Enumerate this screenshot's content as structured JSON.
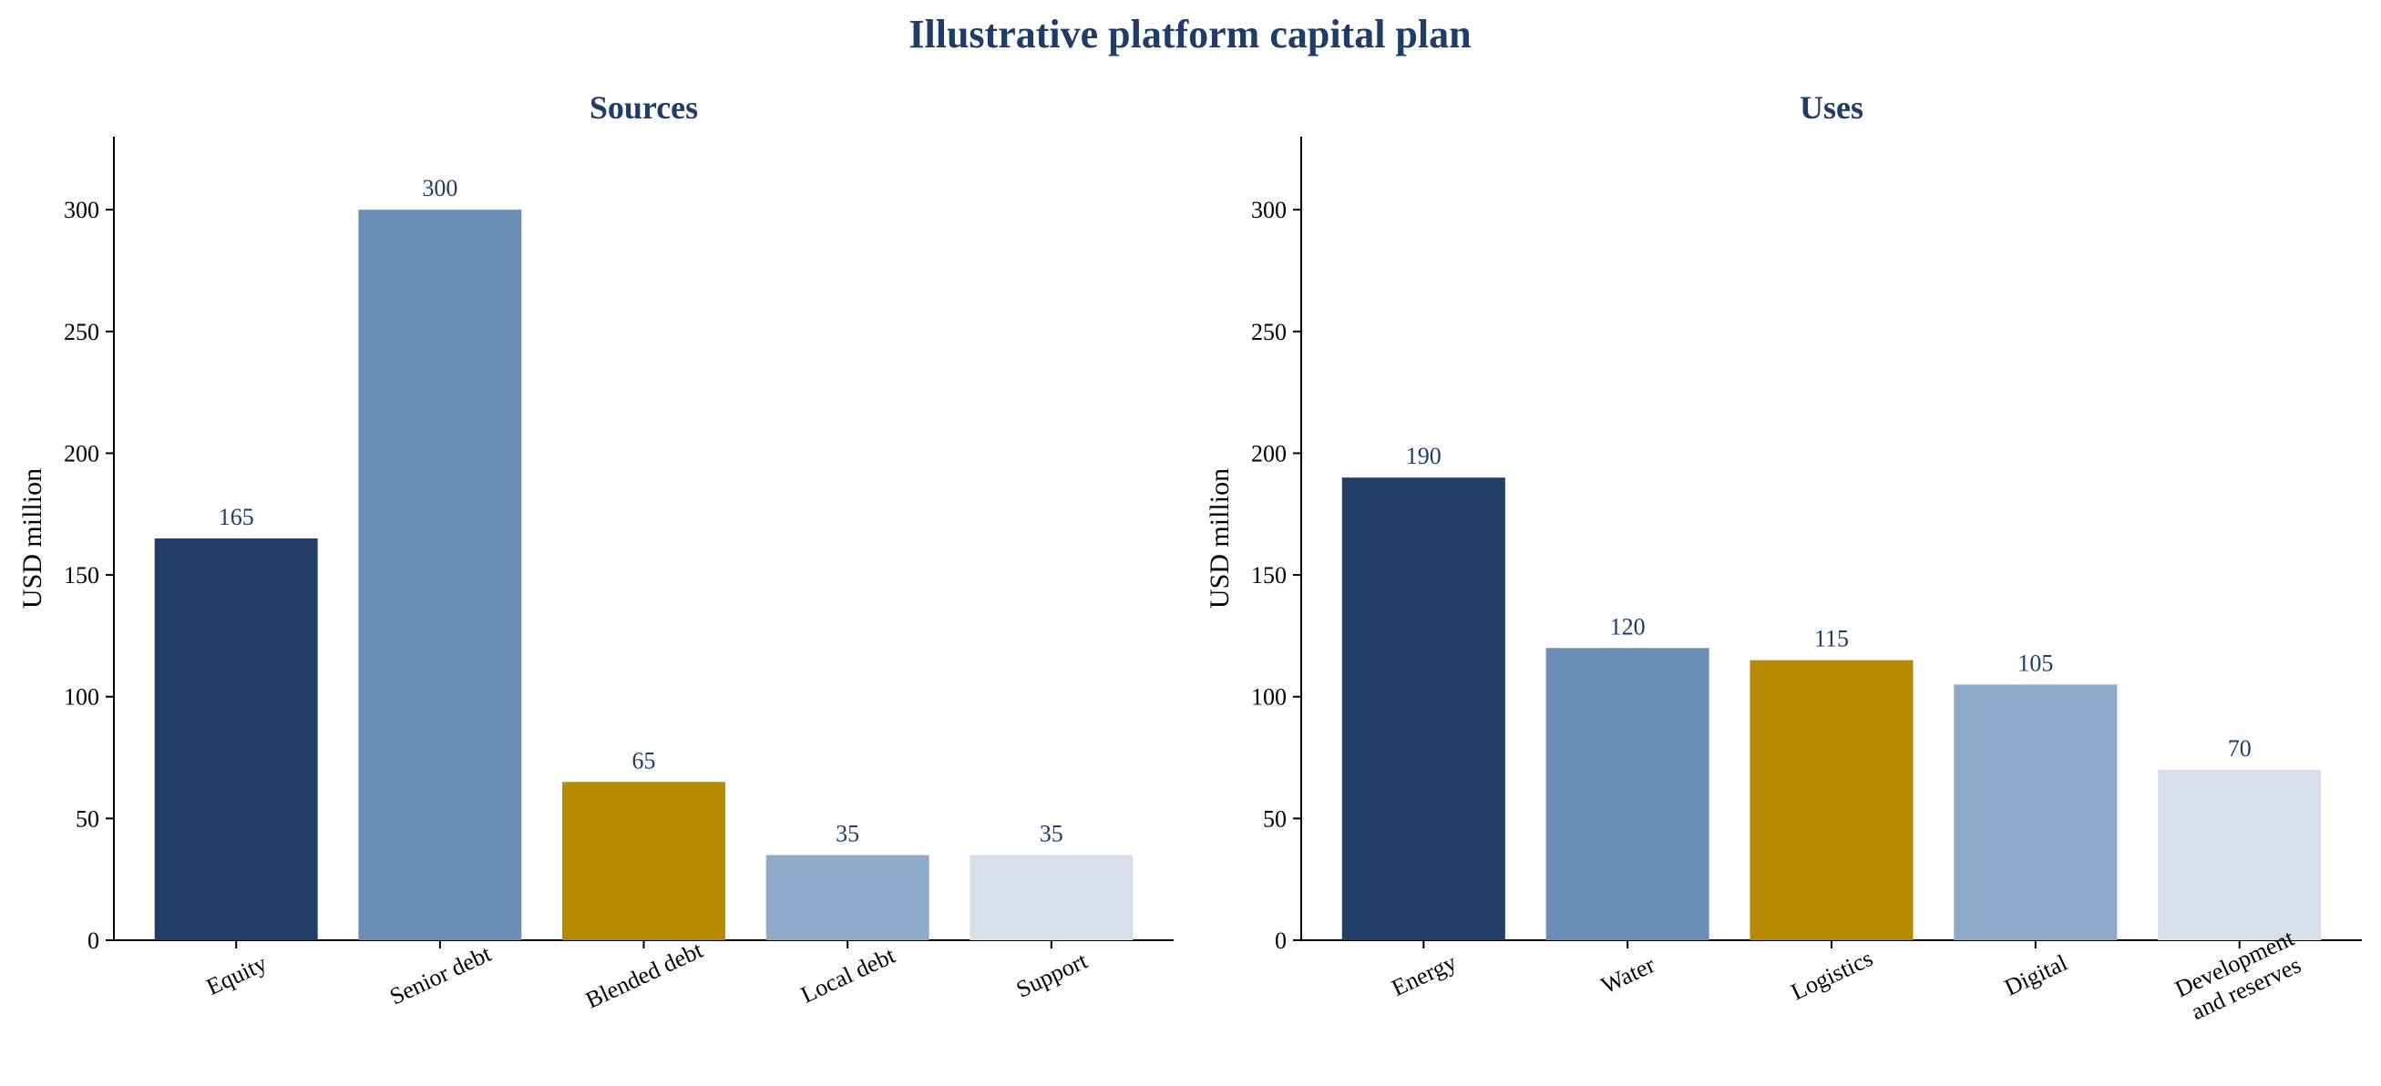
{
  "figure_title": "Illustrative platform capital plan",
  "chart_data": [
    {
      "type": "bar",
      "title": "Sources",
      "ylabel": "USD million",
      "xlabel": "",
      "ylim": [
        0,
        330
      ],
      "yticks": [
        0,
        50,
        100,
        150,
        200,
        250,
        300
      ],
      "categories": [
        "Equity",
        "Senior debt",
        "Blended debt",
        "Local debt",
        "Support"
      ],
      "values": [
        165,
        300,
        65,
        35,
        35
      ],
      "colors": [
        "#213f69",
        "#6b8db6",
        "#b58a00",
        "#8fa9c8",
        "#d7e0ea"
      ],
      "data_labels": [
        "165",
        "300",
        "65",
        "35",
        "35"
      ],
      "grid": false
    },
    {
      "type": "bar",
      "title": "Uses",
      "ylabel": "USD million",
      "xlabel": "",
      "ylim": [
        0,
        330
      ],
      "yticks": [
        0,
        50,
        100,
        150,
        200,
        250,
        300
      ],
      "categories": [
        "Energy",
        "Water",
        "Logistics",
        "Digital",
        "Development\nand reserves"
      ],
      "values": [
        190,
        120,
        115,
        105,
        70
      ],
      "colors": [
        "#213f69",
        "#6b8db6",
        "#b58a00",
        "#8fa9c8",
        "#d7e0ea"
      ],
      "data_labels": [
        "190",
        "120",
        "115",
        "105",
        "70"
      ],
      "grid": false
    }
  ]
}
